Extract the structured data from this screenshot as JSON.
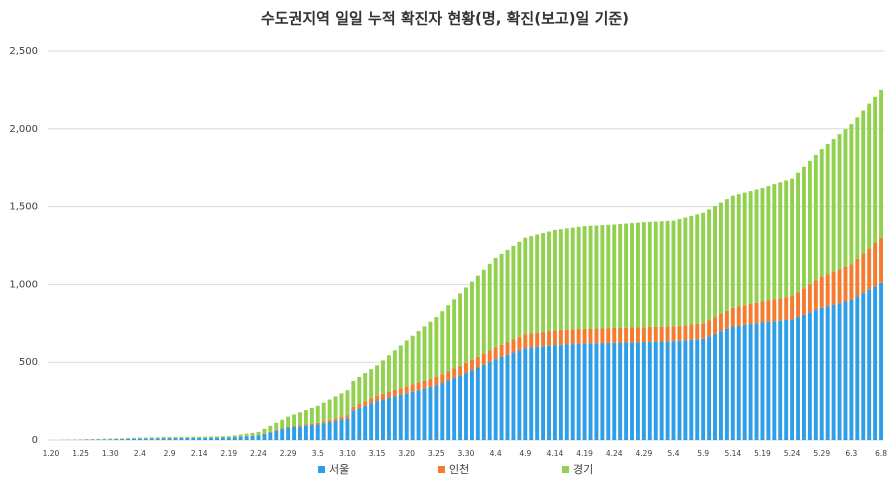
{
  "chart_data": {
    "type": "stacked_bar",
    "title": "수도권지역 일일 누적 확진자 현황(명, 확진(보고)일 기준)",
    "categories": [
      "1.20",
      null,
      null,
      null,
      null,
      "1.25",
      null,
      null,
      null,
      null,
      "1.30",
      null,
      null,
      null,
      null,
      "2.4",
      null,
      null,
      null,
      null,
      "2.9",
      null,
      null,
      null,
      null,
      "2.14",
      null,
      null,
      null,
      null,
      "2.19",
      null,
      null,
      null,
      null,
      "2.24",
      null,
      null,
      null,
      null,
      "2.29",
      null,
      null,
      null,
      null,
      "3.5",
      null,
      null,
      null,
      null,
      "3.10",
      null,
      null,
      null,
      null,
      "3.15",
      null,
      null,
      null,
      null,
      "3.20",
      null,
      null,
      null,
      null,
      "3.25",
      null,
      null,
      null,
      null,
      "3.30",
      null,
      null,
      null,
      null,
      "4.4",
      null,
      null,
      null,
      null,
      "4.9",
      null,
      null,
      null,
      null,
      "4.14",
      null,
      null,
      null,
      null,
      "4.19",
      null,
      null,
      null,
      null,
      "4.24",
      null,
      null,
      null,
      null,
      "4.29",
      null,
      null,
      null,
      null,
      "5.4",
      null,
      null,
      null,
      null,
      "5.9",
      null,
      null,
      null,
      null,
      "5.14",
      null,
      null,
      null,
      null,
      "5.19",
      null,
      null,
      null,
      null,
      "5.24",
      null,
      null,
      null,
      null,
      "5.29",
      null,
      null,
      null,
      null,
      "6.3",
      null,
      null,
      null,
      null,
      "6.8"
    ],
    "series": [
      {
        "name": "서울",
        "color": "#2f9ee8",
        "values": [
          0,
          0,
          1,
          1,
          1,
          2,
          3,
          3,
          4,
          4,
          5,
          6,
          7,
          8,
          9,
          10,
          10,
          11,
          11,
          12,
          12,
          12,
          13,
          13,
          14,
          14,
          14,
          15,
          15,
          16,
          16,
          19,
          22,
          24,
          27,
          30,
          40,
          50,
          60,
          70,
          80,
          84,
          88,
          92,
          96,
          100,
          108,
          116,
          124,
          132,
          140,
          190,
          205,
          220,
          235,
          250,
          260,
          270,
          280,
          290,
          300,
          310,
          320,
          330,
          340,
          350,
          366,
          382,
          398,
          414,
          430,
          448,
          466,
          484,
          502,
          520,
          534,
          548,
          562,
          576,
          590,
          594,
          598,
          602,
          606,
          610,
          612,
          614,
          616,
          618,
          620,
          621,
          622,
          623,
          624,
          625,
          626,
          627,
          628,
          629,
          630,
          631,
          632,
          633,
          634,
          635,
          638,
          641,
          644,
          647,
          650,
          666,
          682,
          698,
          714,
          730,
          735,
          740,
          745,
          750,
          755,
          759,
          763,
          767,
          771,
          775,
          790,
          805,
          820,
          835,
          850,
          860,
          870,
          880,
          890,
          900,
          922,
          944,
          966,
          988,
          1010
        ]
      },
      {
        "name": "인천",
        "color": "#f47b2f",
        "values": [
          0,
          0,
          0,
          1,
          1,
          1,
          1,
          1,
          1,
          1,
          1,
          1,
          1,
          1,
          1,
          1,
          1,
          1,
          1,
          1,
          1,
          1,
          1,
          1,
          1,
          1,
          1,
          1,
          1,
          1,
          1,
          1,
          1,
          2,
          2,
          2,
          3,
          3,
          4,
          4,
          5,
          6,
          7,
          8,
          9,
          10,
          12,
          14,
          16,
          18,
          20,
          23,
          26,
          29,
          32,
          35,
          37,
          39,
          41,
          43,
          45,
          47,
          49,
          51,
          53,
          55,
          57,
          59,
          61,
          63,
          65,
          67,
          69,
          71,
          73,
          75,
          78,
          81,
          84,
          87,
          90,
          91,
          92,
          93,
          94,
          95,
          95,
          95,
          95,
          95,
          95,
          95,
          95,
          95,
          95,
          95,
          95,
          95,
          95,
          95,
          95,
          95,
          95,
          95,
          95,
          95,
          96,
          97,
          98,
          99,
          100,
          104,
          108,
          112,
          116,
          120,
          123,
          126,
          129,
          132,
          135,
          138,
          141,
          144,
          147,
          150,
          160,
          170,
          180,
          190,
          200,
          206,
          212,
          218,
          224,
          230,
          242,
          254,
          266,
          278,
          290
        ]
      },
      {
        "name": "경기",
        "color": "#92d050",
        "values": [
          0,
          0,
          0,
          1,
          1,
          1,
          1,
          2,
          2,
          3,
          3,
          3,
          3,
          4,
          4,
          4,
          4,
          5,
          5,
          6,
          6,
          6,
          6,
          6,
          6,
          6,
          6,
          6,
          7,
          7,
          7,
          10,
          12,
          15,
          17,
          20,
          29,
          38,
          47,
          56,
          65,
          74,
          83,
          92,
          101,
          110,
          120,
          130,
          140,
          150,
          160,
          167,
          174,
          181,
          188,
          195,
          215,
          235,
          255,
          275,
          295,
          313,
          331,
          349,
          367,
          385,
          405,
          425,
          445,
          465,
          485,
          503,
          521,
          539,
          557,
          575,
          584,
          593,
          602,
          611,
          620,
          625,
          630,
          635,
          640,
          645,
          648,
          651,
          654,
          657,
          660,
          661,
          662,
          663,
          664,
          665,
          667,
          669,
          671,
          673,
          675,
          676,
          677,
          678,
          679,
          680,
          686,
          692,
          698,
          704,
          710,
          712,
          714,
          716,
          718,
          720,
          722,
          724,
          726,
          728,
          730,
          735,
          740,
          745,
          750,
          755,
          768,
          781,
          794,
          807,
          820,
          836,
          852,
          868,
          884,
          900,
          910,
          920,
          930,
          940,
          950
        ]
      }
    ],
    "ylim": [
      0,
      2500
    ],
    "yticks": [
      0,
      {
        "value": 500,
        "label": "500"
      },
      {
        "value": 1000,
        "label": "1,000"
      },
      {
        "value": 1500,
        "label": "1,500"
      },
      {
        "value": 2000,
        "label": "2,000"
      },
      {
        "value": 2500,
        "label": "2,500"
      }
    ],
    "grid": true,
    "legend": "bottom"
  }
}
